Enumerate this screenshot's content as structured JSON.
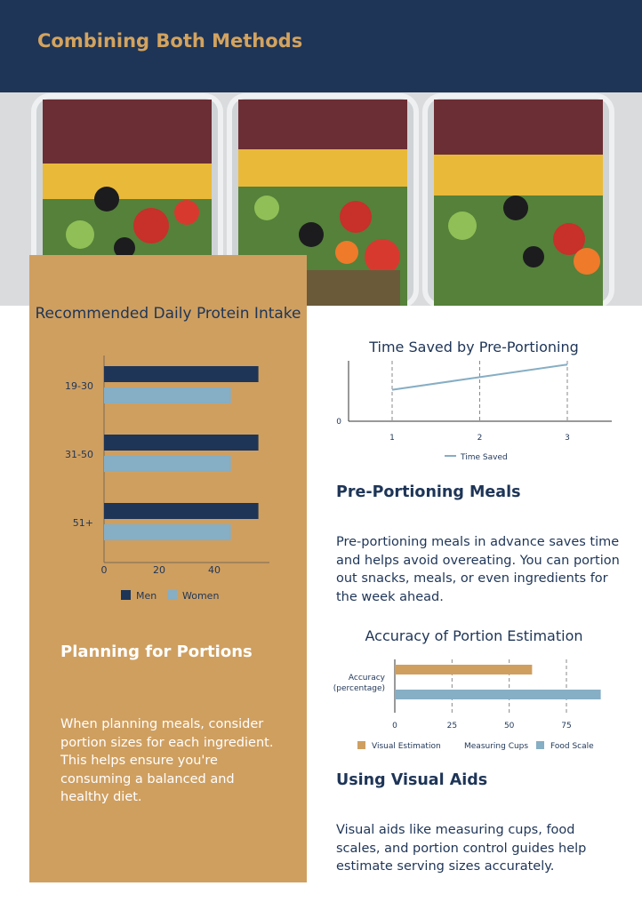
{
  "header": {
    "title": "Combining Both Methods"
  },
  "left_panel": {
    "chart_title": "Recommended Daily Protein Intake",
    "heading": "Planning for Portions",
    "body": "When planning meals, consider portion sizes for each ingredient. This helps ensure you're consuming a balanced and healthy diet."
  },
  "pre_portioning": {
    "chart_title": "Time Saved by Pre-Portioning",
    "heading": "Pre-Portioning Meals",
    "body": "Pre-portioning meals in advance saves time and helps avoid overeating. You can portion out snacks, meals, or even ingredients for the week ahead."
  },
  "accuracy": {
    "chart_title": "Accuracy of Portion Estimation"
  },
  "visual_aids": {
    "heading": "Using Visual Aids",
    "body": "Visual aids like measuring cups, food scales, and portion control guides help estimate serving sizes accurately."
  },
  "colors": {
    "navy": "#1e3557",
    "tan": "#cf9f60",
    "light_blue": "#86aec4",
    "white": "#ffffff"
  },
  "chart_data": [
    {
      "type": "bar",
      "orientation": "horizontal",
      "title": "Recommended Daily Protein Intake",
      "categories": [
        "19-30",
        "31-50",
        "51+"
      ],
      "series": [
        {
          "name": "Men",
          "values": [
            56,
            56,
            56
          ],
          "color": "#1e3557"
        },
        {
          "name": "Women",
          "values": [
            46,
            46,
            46
          ],
          "color": "#86aec4"
        }
      ],
      "xticks": [
        "0",
        "20",
        "40"
      ],
      "xlim": [
        0,
        60
      ],
      "legend": "bottom"
    },
    {
      "type": "line",
      "title": "Time Saved by Pre-Portioning",
      "x": [
        1,
        2,
        3
      ],
      "xticks": [
        "1",
        "2",
        "3"
      ],
      "yticks": [
        "0"
      ],
      "series": [
        {
          "name": "Time Saved",
          "values": [
            1,
            2,
            3
          ],
          "color": "#86aec4"
        }
      ],
      "ylim": [
        -1.5,
        3.3
      ],
      "legend": "bottom"
    },
    {
      "type": "bar",
      "orientation": "horizontal",
      "title": "Accuracy of Portion Estimation",
      "categories": [
        "Accuracy (percentage)"
      ],
      "series": [
        {
          "name": "Visual Estimation",
          "values": [
            60
          ],
          "color": "#cf9f60"
        },
        {
          "name": "Measuring Cups",
          "values": [
            0
          ],
          "color": "#ffffff"
        },
        {
          "name": "Food Scale",
          "values": [
            90
          ],
          "color": "#86aec4"
        }
      ],
      "xticks": [
        "0",
        "25",
        "50",
        "75"
      ],
      "xlim": [
        0,
        90
      ],
      "legend": "bottom"
    }
  ]
}
